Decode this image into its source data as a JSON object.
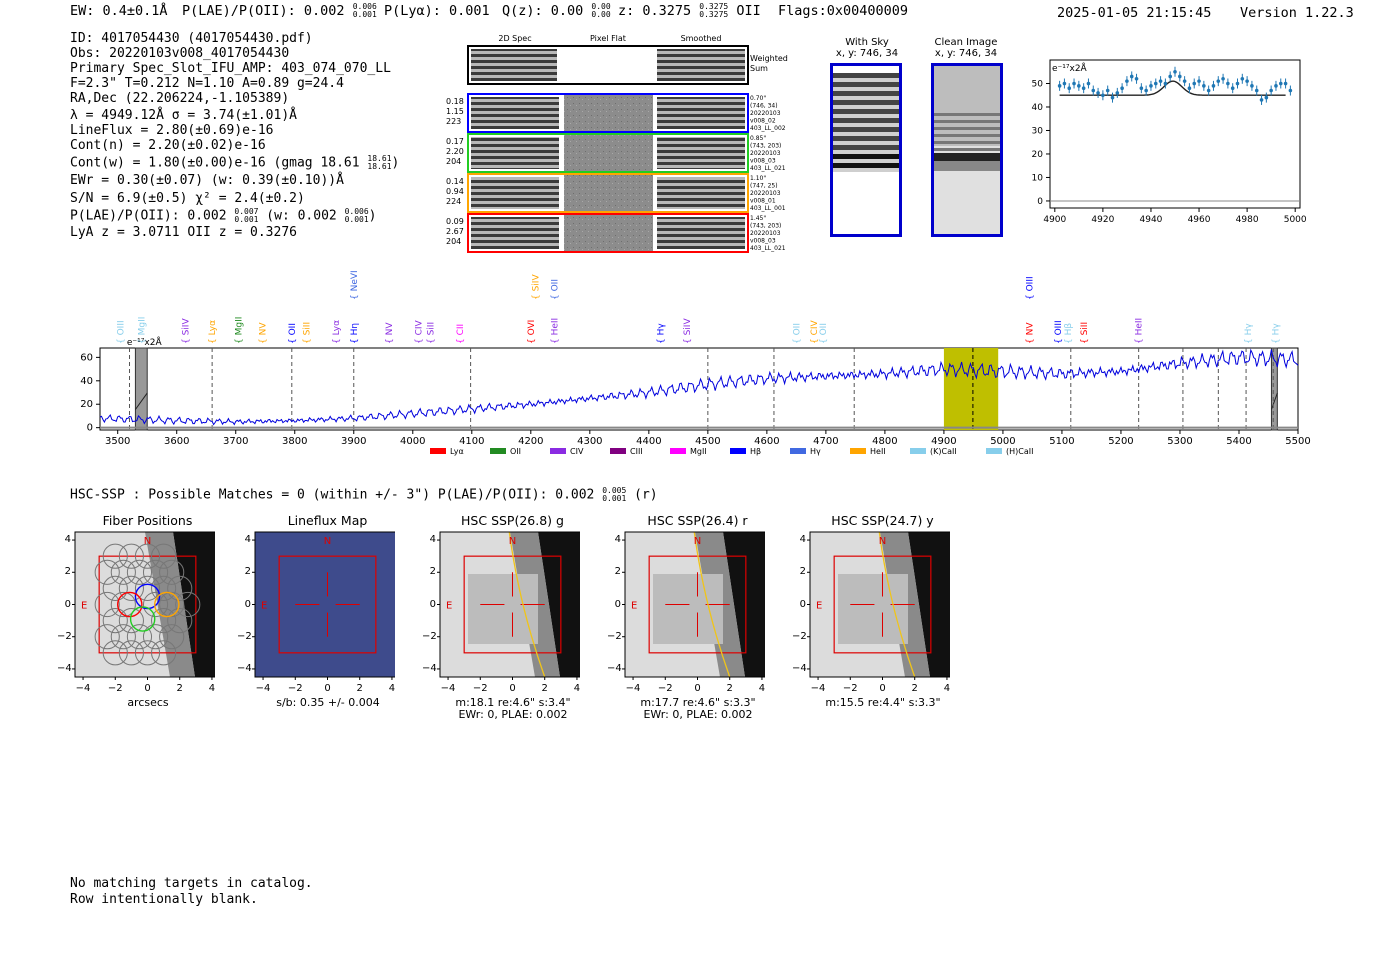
{
  "header": {
    "ew": "EW: 0.4±0.1Å",
    "plae": "P(LAE)/P(OII): 0.002",
    "plae_hi": "0.006",
    "plae_lo": "0.001",
    "plya": "P(Lyα): 0.001",
    "qz": "Q(z): 0.00",
    "qz_hi": "0.00",
    "qz_lo": "0.00",
    "z": "z: 0.3275",
    "z_hi": "0.3275",
    "z_lo": "0.3275",
    "z_line": "OII",
    "flags": "Flags:0x00400009",
    "datetime": "2025-01-05 21:15:45",
    "version": "Version 1.22.3"
  },
  "info": {
    "id": "ID: 4017054430 (4017054430.pdf)",
    "obs": "Obs: 20220103v008_4017054430",
    "primary": "Primary Spec_Slot_IFU_AMP: 403_074_070_LL",
    "fiber": "F=2.3\"  T=0.212  N=1.10  A=0.89  g=24.4",
    "radec": "RA,Dec (22.206224,-1.105389)",
    "lambda": "λ = 4949.12Å   σ = 3.74(±1.01)Å",
    "lineflux": "LineFlux = 2.80(±0.69)e-16",
    "contn": "Cont(n) = 2.20(±0.02)e-16",
    "contw": "Cont(w) = 1.80(±0.00)e-16 (gmag 18.61",
    "contw_hi": "18.61",
    "contw_lo": "18.61",
    "ewr": "EWr = 0.30(±0.07) (w: 0.39(±0.10))Å",
    "sn": "S/N = 6.9(±0.5)  χ² = 2.4(±0.2)",
    "plae2": "P(LAE)/P(OII): 0.002",
    "plae2_hi": "0.007",
    "plae2_lo": "0.001",
    "plae2_w": "(w: 0.002",
    "plae2_w_hi": "0.006",
    "plae2_w_lo": "0.001",
    "lya": "LyA z = 3.0711  OII z = 0.3276"
  },
  "cutouts": {
    "col_labels": [
      "2D Spec",
      "Pixel Flat",
      "Smoothed"
    ],
    "weighted_sum": [
      "Weighted",
      "Sum"
    ],
    "rows": [
      {
        "color": "#0000ff",
        "left": [
          "0.18",
          "1.15",
          "223"
        ],
        "right": [
          "0.70\"",
          "(746, 34)",
          "20220103",
          "v008_02",
          "403_LL_002"
        ]
      },
      {
        "color": "#22cc22",
        "left": [
          "0.17",
          "2.20",
          "204"
        ],
        "right": [
          "0.85\"",
          "(743, 203)",
          "20220103",
          "v008_03",
          "403_LL_021"
        ]
      },
      {
        "color": "#ffa500",
        "left": [
          "0.14",
          "0.94",
          "224"
        ],
        "right": [
          "1.10\"",
          "(747, 25)",
          "20220103",
          "v008_01",
          "403_LL_001"
        ]
      },
      {
        "color": "#ff0000",
        "left": [
          "0.09",
          "2.67",
          "204"
        ],
        "right": [
          "1.45\"",
          "(743, 203)",
          "20220103",
          "v008_03",
          "403_LL_021"
        ]
      }
    ],
    "with_sky_title": "With Sky",
    "with_sky_xy": "x, y: 746, 34",
    "clean_title": "Clean Image",
    "clean_xy": "x, y: 746, 34"
  },
  "zoom_chart": {
    "type": "scatter",
    "unit_label": "e⁻¹⁷x2Å",
    "xlim": [
      4898,
      5002
    ],
    "ylim": [
      -3,
      60
    ],
    "xticks": [
      "4900",
      "4920",
      "4940",
      "4960",
      "4980",
      "5000"
    ],
    "yticks": [
      "0",
      "10",
      "20",
      "30",
      "40",
      "50"
    ],
    "x": [
      4902,
      4904,
      4906,
      4908,
      4910,
      4912,
      4914,
      4916,
      4918,
      4920,
      4922,
      4924,
      4926,
      4928,
      4930,
      4932,
      4934,
      4936,
      4938,
      4940,
      4942,
      4944,
      4946,
      4948,
      4950,
      4952,
      4954,
      4956,
      4958,
      4960,
      4962,
      4964,
      4966,
      4968,
      4970,
      4972,
      4974,
      4976,
      4978,
      4980,
      4982,
      4984,
      4986,
      4988,
      4990,
      4992,
      4994,
      4996,
      4998
    ],
    "y": [
      49,
      50,
      48,
      50,
      49,
      48,
      50,
      47,
      46,
      45,
      47,
      44,
      46,
      48,
      51,
      53,
      52,
      48,
      47,
      49,
      50,
      51,
      50,
      53,
      55,
      53,
      51,
      48,
      50,
      51,
      49,
      47,
      49,
      51,
      52,
      50,
      48,
      50,
      52,
      51,
      49,
      47,
      43,
      44,
      47,
      49,
      50,
      50,
      47
    ],
    "model_baseline": 45,
    "model_peak": 51,
    "model_center": 4949.12,
    "model_sigma": 3.74
  },
  "spectrum": {
    "type": "line",
    "unit_label": "e⁻¹⁷x2Å",
    "xlim": [
      3470,
      5500
    ],
    "ylim": [
      -2,
      68
    ],
    "xticks": [
      "3500",
      "3600",
      "3700",
      "3800",
      "3900",
      "4000",
      "4100",
      "4200",
      "4300",
      "4400",
      "4500",
      "4600",
      "4700",
      "4800",
      "4900",
      "5000",
      "5100",
      "5200",
      "5300",
      "5400",
      "5500"
    ],
    "yticks": [
      "0",
      "20",
      "40",
      "60"
    ],
    "highlight": [
      4900,
      4992
    ],
    "highlight_line": 4949.12,
    "masked_bands": [
      [
        3530,
        3550
      ],
      [
        5455,
        5465
      ]
    ],
    "dashed_lines": [
      3520,
      3660,
      3795,
      3900,
      4098,
      4500,
      4612,
      4748,
      5115,
      5230,
      5305,
      5365,
      5412,
      5458
    ],
    "line_labels": [
      {
        "text": "OIII",
        "x": 3505,
        "color": "#87ceeb",
        "tier": 0
      },
      {
        "text": "MgII",
        "x": 3540,
        "color": "#87ceeb",
        "tier": 0
      },
      {
        "text": "SiIV",
        "x": 3615,
        "color": "#8a2be2",
        "tier": 0
      },
      {
        "text": "Lyα",
        "x": 3660,
        "color": "#ffa500",
        "tier": 0
      },
      {
        "text": "MgII",
        "x": 3705,
        "color": "#228b22",
        "tier": 0
      },
      {
        "text": "NV",
        "x": 3745,
        "color": "#ffa500",
        "tier": 0
      },
      {
        "text": "OII",
        "x": 3795,
        "color": "#0000ff",
        "tier": 0
      },
      {
        "text": "SiII",
        "x": 3820,
        "color": "#ffa500",
        "tier": 0
      },
      {
        "text": "Lyα",
        "x": 3870,
        "color": "#8a2be2",
        "tier": 0
      },
      {
        "text": "Hη",
        "x": 3900,
        "color": "#0000ff",
        "tier": 0
      },
      {
        "text": "NeVI",
        "x": 3900,
        "color": "#4169e1",
        "tier": 1
      },
      {
        "text": "NV",
        "x": 3960,
        "color": "#8a2be2",
        "tier": 0
      },
      {
        "text": "CIV",
        "x": 4010,
        "color": "#8a2be2",
        "tier": 0
      },
      {
        "text": "SiII",
        "x": 4030,
        "color": "#8a2be2",
        "tier": 0
      },
      {
        "text": "CII",
        "x": 4080,
        "color": "#ff00ff",
        "tier": 0
      },
      {
        "text": "OVI",
        "x": 4200,
        "color": "#ff0000",
        "tier": 0
      },
      {
        "text": "SiIV",
        "x": 4208,
        "color": "#ffa500",
        "tier": 1
      },
      {
        "text": "OII",
        "x": 4240,
        "color": "#4169e1",
        "tier": 1
      },
      {
        "text": "HeII",
        "x": 4240,
        "color": "#8a2be2",
        "tier": 0
      },
      {
        "text": "Hγ",
        "x": 4420,
        "color": "#0000ff",
        "tier": 0
      },
      {
        "text": "SiIV",
        "x": 4465,
        "color": "#8a2be2",
        "tier": 0
      },
      {
        "text": "OII",
        "x": 4650,
        "color": "#87ceeb",
        "tier": 0
      },
      {
        "text": "CIV",
        "x": 4680,
        "color": "#ffa500",
        "tier": 0
      },
      {
        "text": "OII",
        "x": 4695,
        "color": "#87ceeb",
        "tier": 0
      },
      {
        "text": "NV",
        "x": 5045,
        "color": "#ff0000",
        "tier": 0
      },
      {
        "text": "OIII",
        "x": 5045,
        "color": "#0000ff",
        "tier": 1
      },
      {
        "text": "OIII",
        "x": 5093,
        "color": "#0000ff",
        "tier": 0
      },
      {
        "text": "Hβ",
        "x": 5110,
        "color": "#87ceeb",
        "tier": 0
      },
      {
        "text": "SiII",
        "x": 5137,
        "color": "#ff0000",
        "tier": 0
      },
      {
        "text": "HeII",
        "x": 5230,
        "color": "#8a2be2",
        "tier": 0
      },
      {
        "text": "Hγ",
        "x": 5415,
        "color": "#87ceeb",
        "tier": 0
      },
      {
        "text": "Hγ",
        "x": 5462,
        "color": "#87ceeb",
        "tier": 0
      }
    ],
    "legend": [
      {
        "label": "Lyα",
        "color": "#ff0000"
      },
      {
        "label": "OII",
        "color": "#228b22"
      },
      {
        "label": "CIV",
        "color": "#8a2be2"
      },
      {
        "label": "CIII",
        "color": "#800080"
      },
      {
        "label": "MgII",
        "color": "#ff00ff"
      },
      {
        "label": "Hβ",
        "color": "#0000ff"
      },
      {
        "label": "Hγ",
        "color": "#4169e1"
      },
      {
        "label": "HeII",
        "color": "#ffa500"
      },
      {
        "label": "(K)CaII",
        "color": "#87ceeb"
      },
      {
        "label": "(H)CaII",
        "color": "#87ceeb"
      }
    ],
    "anchors_x": [
      3470,
      3600,
      3700,
      3800,
      3900,
      4000,
      4100,
      4200,
      4300,
      4400,
      4500,
      4600,
      4700,
      4800,
      4900,
      5000,
      5100,
      5200,
      5300,
      5400,
      5500
    ],
    "anchors_y": [
      8,
      6,
      5,
      6,
      8,
      12,
      16,
      20,
      25,
      30,
      37,
      42,
      44,
      46,
      50,
      48,
      46,
      48,
      55,
      60,
      58
    ]
  },
  "hsc": {
    "title": "HSC-SSP : Possible Matches = 0 (within +/- 3\")  P(LAE)/P(OII): 0.002",
    "title_hi": "0.005",
    "title_lo": "0.001",
    "title_band": "(r)",
    "panels": [
      {
        "title": "Fiber Positions",
        "xlabel": "arcsecs",
        "xlabel2": ""
      },
      {
        "title": "Lineflux Map",
        "xlabel": "s/b: 0.35 +/- 0.004",
        "xlabel2": ""
      },
      {
        "title": "HSC SSP(26.8) g",
        "xlabel": "m:18.1  re:4.6\"  s:3.4\"",
        "xlabel2": "EWr: 0, PLAE: 0.002"
      },
      {
        "title": "HSC SSP(26.4) r",
        "xlabel": "m:17.7  re:4.6\"  s:3.3\"",
        "xlabel2": "EWr: 0, PLAE: 0.002"
      },
      {
        "title": "HSC SSP(24.7) y",
        "xlabel": "m:15.5  re:4.4\"  s:3.3\"",
        "xlabel2": ""
      }
    ],
    "ticks": [
      "−4",
      "−2",
      "0",
      "2",
      "4"
    ],
    "north": "N",
    "east": "E"
  },
  "footer": {
    "line1": "No matching targets in catalog.",
    "line2": "Row intentionally blank."
  }
}
